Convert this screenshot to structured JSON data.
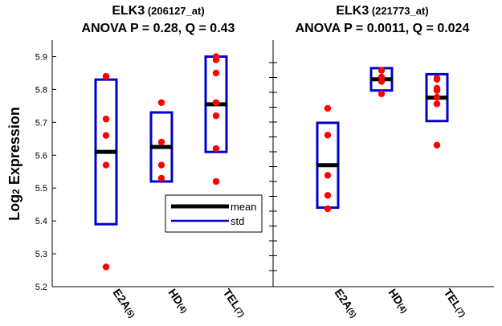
{
  "ylabel_main": "Log",
  "ylabel_sub": "2",
  "ylabel_rest": " Expression",
  "legend": {
    "mean": "mean",
    "std": "std"
  },
  "colors": {
    "point": "#ff0000",
    "box": "#0000cc",
    "mean": "#000000",
    "axis": "#000000"
  },
  "chart_data": [
    {
      "type": "scatter",
      "title_line1_main": "ELK3",
      "title_line1_probe": " (206127_at)",
      "title_line2": "ANOVA  P = 0.28, Q = 0.43",
      "ylim": [
        5.2,
        5.95
      ],
      "yticks": [
        "5.2",
        "5.3",
        "5.4",
        "5.5",
        "5.6",
        "5.7",
        "5.8",
        "5.9"
      ],
      "groups": [
        {
          "name": "E2A",
          "n": "(5)",
          "points": [
            5.84,
            5.71,
            5.66,
            5.57,
            5.26
          ],
          "mean": 5.61,
          "std_low": 5.39,
          "std_high": 5.83
        },
        {
          "name": "HD",
          "n": "(4)",
          "points": [
            5.76,
            5.64,
            5.57,
            5.53
          ],
          "mean": 5.625,
          "std_low": 5.52,
          "std_high": 5.73
        },
        {
          "name": "TEL",
          "n": "(7)",
          "points": [
            5.9,
            5.89,
            5.85,
            5.76,
            5.72,
            5.62,
            5.52
          ],
          "mean": 5.755,
          "std_low": 5.61,
          "std_high": 5.9
        }
      ]
    },
    {
      "type": "scatter",
      "title_line1_main": "ELK3",
      "title_line1_probe": " (221773_at)",
      "title_line2": "ANOVA  P = 0.0011, Q = 0.024",
      "groups": [
        {
          "name": "E2A",
          "n": "(5)",
          "points": [
            0.72,
            0.6,
            0.42,
            0.33,
            0.27
          ],
          "mean": 0.465,
          "std_low": 0.275,
          "std_high": 0.655
        },
        {
          "name": "HD",
          "n": "(4)",
          "points": [
            0.89,
            0.86,
            0.84,
            0.785
          ],
          "mean": 0.85,
          "std_low": 0.8,
          "std_high": 0.9
        },
        {
          "name": "TEL",
          "n": "(7)",
          "points": [
            0.855,
            0.85,
            0.81,
            0.8,
            0.77,
            0.74,
            0.555
          ],
          "mean": 0.768,
          "std_low": 0.663,
          "std_high": 0.873
        }
      ]
    }
  ]
}
